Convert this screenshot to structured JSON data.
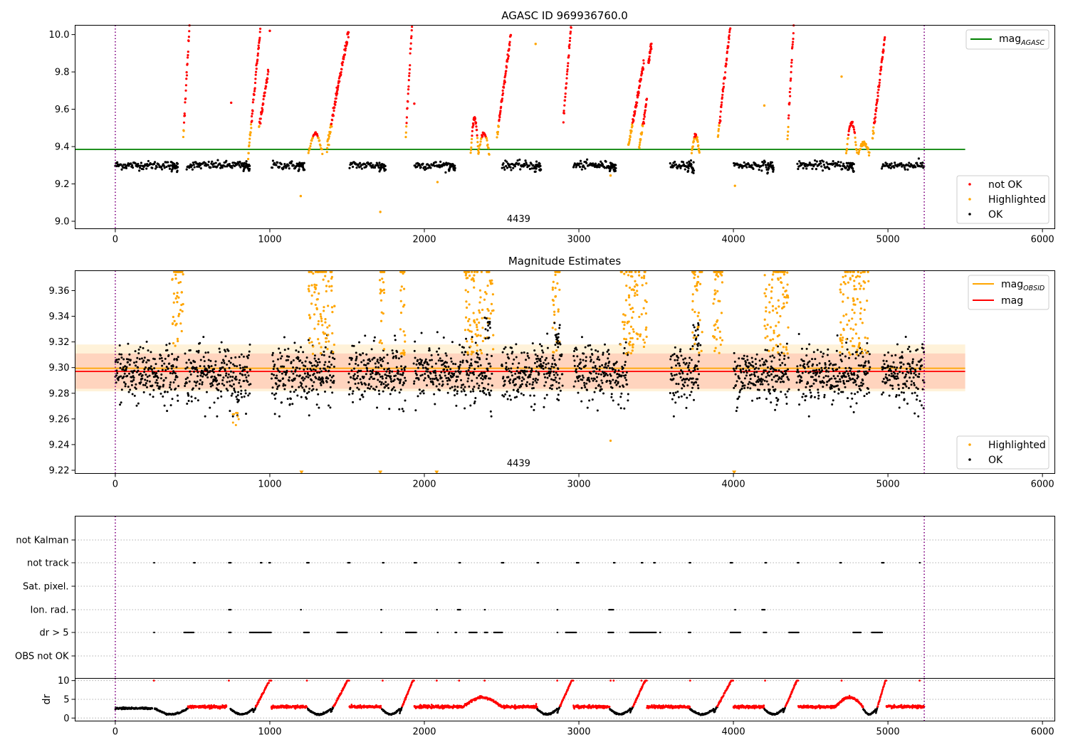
{
  "chart_data": [
    {
      "type": "scatter",
      "title": "AGASC ID 969936760.0",
      "xlabel": "",
      "ylabel": "",
      "xlim": [
        -260,
        6080
      ],
      "ylim": [
        8.96,
        10.05
      ],
      "xticks": [
        "0",
        "1000",
        "2000",
        "3000",
        "4000",
        "5000",
        "6000"
      ],
      "yticks": [
        "9.0",
        "9.2",
        "9.4",
        "9.6",
        "9.8",
        "10.0"
      ],
      "vlines": [
        0,
        5235
      ],
      "hline": {
        "label": "mag_AGASC",
        "value": 9.385,
        "color": "#008000"
      },
      "annotation": {
        "text": "4439",
        "x": 2610,
        "y": 9.0
      },
      "legend_upper": [
        {
          "label": "mag",
          "sub": "AGASC",
          "color": "#008000"
        }
      ],
      "legend_lower": [
        {
          "label": "not OK",
          "color": "#ff0000"
        },
        {
          "label": "Highlighted",
          "color": "#ffa500"
        },
        {
          "label": "OK",
          "color": "#000000"
        }
      ],
      "data_summary": {
        "baseline_mag": 9.3,
        "gaps": [
          [
            405,
            460
          ],
          [
            870,
            1010
          ],
          [
            1225,
            1515
          ],
          [
            1750,
            1935
          ],
          [
            2200,
            2500
          ],
          [
            2755,
            2965
          ],
          [
            3240,
            3590
          ],
          [
            3745,
            4000
          ],
          [
            4260,
            4410
          ],
          [
            4780,
            4960
          ]
        ],
        "ramps_not_ok": [
          [
            440,
            480,
            9.45,
            10.05
          ],
          [
            860,
            940,
            9.35,
            10.05
          ],
          [
            930,
            990,
            9.5,
            9.8
          ],
          [
            1370,
            1510,
            9.4,
            10.02
          ],
          [
            1880,
            1920,
            9.45,
            10.05
          ],
          [
            2470,
            2560,
            9.45,
            10.0
          ],
          [
            2900,
            2950,
            9.55,
            10.05
          ],
          [
            3320,
            3420,
            9.4,
            9.85
          ],
          [
            3390,
            3440,
            9.4,
            9.65
          ],
          [
            3450,
            3470,
            9.85,
            9.95
          ],
          [
            3900,
            3980,
            9.45,
            10.05
          ],
          [
            4350,
            4390,
            9.45,
            10.05
          ],
          [
            4900,
            4980,
            9.45,
            9.98
          ]
        ],
        "isolated_points": [
          [
            750,
            9.635,
            "not OK"
          ],
          [
            1000,
            10.02,
            "not OK"
          ],
          [
            1935,
            9.63,
            "not OK"
          ],
          [
            1200,
            9.135,
            "Highlighted"
          ],
          [
            1715,
            9.05,
            "Highlighted"
          ],
          [
            2085,
            9.21,
            "Highlighted"
          ],
          [
            2720,
            9.95,
            "Highlighted"
          ],
          [
            3205,
            9.245,
            "Highlighted"
          ],
          [
            4010,
            9.19,
            "Highlighted"
          ],
          [
            4200,
            9.62,
            "Highlighted"
          ],
          [
            4700,
            9.775,
            "Highlighted"
          ]
        ]
      }
    },
    {
      "type": "scatter",
      "title": "Magnitude Estimates",
      "xlabel": "",
      "ylabel": "",
      "xlim": [
        -260,
        6080
      ],
      "ylim": [
        9.2175,
        9.3755
      ],
      "xticks": [
        "0",
        "1000",
        "2000",
        "3000",
        "4000",
        "5000",
        "6000"
      ],
      "yticks": [
        "9.22",
        "9.24",
        "9.26",
        "9.28",
        "9.30",
        "9.32",
        "9.34",
        "9.36"
      ],
      "vlines": [
        0,
        5235
      ],
      "lines": [
        {
          "label": "mag_OBSID",
          "value": 9.2995,
          "color": "#ffa500"
        },
        {
          "label": "mag",
          "value": 9.297,
          "color": "#ff0000"
        }
      ],
      "bands": [
        {
          "color": "#ffa500",
          "range": [
            9.2815,
            9.318
          ]
        },
        {
          "color": "#ff0000",
          "range": [
            9.2835,
            9.311
          ]
        }
      ],
      "annotation": {
        "text": "4439",
        "x": 2610,
        "y": 9.2235
      },
      "legend_upper": [
        {
          "label": "mag",
          "sub": "OBSID",
          "color": "#ffa500"
        },
        {
          "label": "mag",
          "sub": "",
          "color": "#ff0000"
        }
      ],
      "legend_lower": [
        {
          "label": "Highlighted",
          "color": "#ffa500"
        },
        {
          "label": "OK",
          "color": "#000000"
        }
      ],
      "clipped_markers_x": [
        1205,
        1715,
        2080,
        4005
      ],
      "data_summary": {
        "mean": 9.295,
        "spread": 0.012,
        "bursts": [
          [
            365,
            440
          ],
          [
            1250,
            1420
          ],
          [
            1710,
            1740
          ],
          [
            1845,
            1875
          ],
          [
            2260,
            2450
          ],
          [
            2830,
            2875
          ],
          [
            3270,
            3440
          ],
          [
            3735,
            3800
          ],
          [
            3865,
            3930
          ],
          [
            4200,
            4355
          ],
          [
            4690,
            4875
          ]
        ],
        "dips": [
          [
            760,
            800,
            9.255
          ]
        ],
        "rises": [
          [
            2385,
            2430,
            9.335
          ],
          [
            2840,
            2880,
            9.33
          ],
          [
            3740,
            3790,
            9.33
          ]
        ]
      }
    },
    {
      "type": "scatter",
      "title": "",
      "xlabel": "",
      "ylabel": "",
      "xlim": [
        -260,
        6080
      ],
      "xticks": [
        "0",
        "1000",
        "2000",
        "3000",
        "4000",
        "5000",
        "6000"
      ],
      "categories": [
        "not Kalman",
        "not track",
        "Sat. pixel.",
        "Ion. rad.",
        "dr > 5",
        "OBS not OK"
      ],
      "flag_segments": {
        "not Kalman": [],
        "not track": [
          [
            250,
            255
          ],
          [
            508,
            518
          ],
          [
            735,
            750
          ],
          [
            940,
            948
          ],
          [
            995,
            1003
          ],
          [
            1240,
            1255
          ],
          [
            1505,
            1520
          ],
          [
            1730,
            1740
          ],
          [
            1935,
            1950
          ],
          [
            2225,
            2235
          ],
          [
            2500,
            2515
          ],
          [
            2730,
            2740
          ],
          [
            2985,
            3000
          ],
          [
            3225,
            3235
          ],
          [
            3405,
            3415
          ],
          [
            3485,
            3495
          ],
          [
            3715,
            3725
          ],
          [
            3980,
            3995
          ],
          [
            4205,
            4215
          ],
          [
            4415,
            4425
          ],
          [
            4690,
            4700
          ],
          [
            4960,
            4975
          ],
          [
            5205,
            5210
          ]
        ],
        "Sat. pixel.": [],
        "Ion. rad.": [
          [
            735,
            750
          ],
          [
            1200,
            1205
          ],
          [
            1720,
            1725
          ],
          [
            2080,
            2085
          ],
          [
            2215,
            2235
          ],
          [
            2390,
            2395
          ],
          [
            2860,
            2865
          ],
          [
            3195,
            3225
          ],
          [
            4010,
            4015
          ],
          [
            4185,
            4205
          ]
        ],
        "dr > 5": [
          [
            250,
            255
          ],
          [
            445,
            510
          ],
          [
            735,
            750
          ],
          [
            870,
            1010
          ],
          [
            1220,
            1255
          ],
          [
            1435,
            1500
          ],
          [
            1720,
            1725
          ],
          [
            1880,
            1950
          ],
          [
            2085,
            2090
          ],
          [
            2200,
            2210
          ],
          [
            2290,
            2340
          ],
          [
            2390,
            2410
          ],
          [
            2450,
            2505
          ],
          [
            2860,
            2865
          ],
          [
            2915,
            2985
          ],
          [
            3190,
            3225
          ],
          [
            3330,
            3500
          ],
          [
            3525,
            3530
          ],
          [
            3710,
            3725
          ],
          [
            3980,
            4045
          ],
          [
            4195,
            4215
          ],
          [
            4360,
            4425
          ],
          [
            4775,
            4825
          ],
          [
            4895,
            4965
          ]
        ],
        "OBS not OK": []
      }
    },
    {
      "type": "line",
      "title": "",
      "xlabel": "",
      "ylabel": "dr",
      "xlim": [
        -260,
        6080
      ],
      "ylim": [
        -0.8,
        10.6
      ],
      "xticks": [
        "0",
        "1000",
        "2000",
        "3000",
        "4000",
        "5000",
        "6000"
      ],
      "yticks": [
        "0",
        "5",
        "10"
      ],
      "series": [
        {
          "name": "",
          "color": "#ff0000",
          "baseline": 3.0
        },
        {
          "name": "",
          "color": "#000000",
          "baseline": 2.6
        }
      ]
    }
  ]
}
